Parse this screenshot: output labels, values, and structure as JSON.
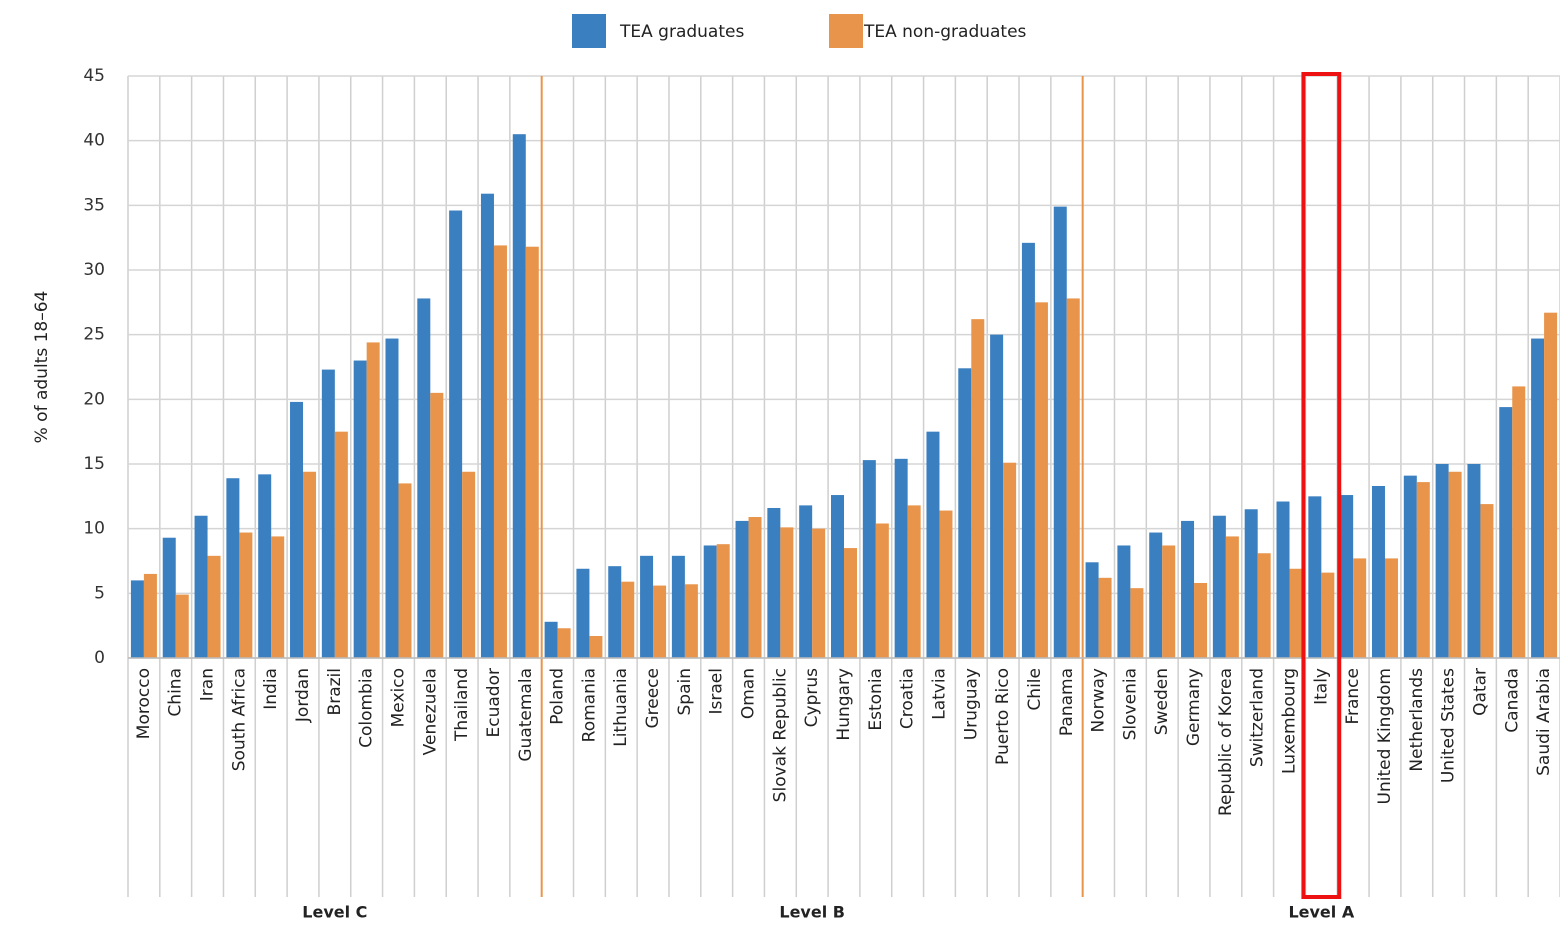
{
  "chart_data": {
    "type": "bar",
    "y_label": "% of adults 18–64",
    "categories": [
      "Morocco",
      "China",
      "Iran",
      "South Africa",
      "India",
      "Jordan",
      "Brazil",
      "Colombia",
      "Mexico",
      "Venezuela",
      "Thailand",
      "Ecuador",
      "Guatemala",
      "Poland",
      "Romania",
      "Lithuania",
      "Greece",
      "Spain",
      "Israel",
      "Oman",
      "Slovak Republic",
      "Cyprus",
      "Hungary",
      "Estonia",
      "Croatia",
      "Latvia",
      "Uruguay",
      "Puerto Rico",
      "Chile",
      "Panama",
      "Norway",
      "Slovenia",
      "Sweden",
      "Germany",
      "Republic of Korea",
      "Switzerland",
      "Luxembourg",
      "Italy",
      "France",
      "United Kingdom",
      "Netherlands",
      "United States",
      "Qatar",
      "Canada",
      "Saudi Arabia"
    ],
    "series": [
      {
        "name": "TEA graduates",
        "color": "#3a7fc0",
        "values": [
          6.0,
          9.3,
          11.0,
          13.9,
          14.2,
          19.8,
          22.3,
          23.0,
          24.7,
          27.8,
          34.6,
          35.9,
          40.5,
          2.8,
          6.9,
          7.1,
          7.9,
          7.9,
          8.7,
          10.6,
          11.6,
          11.8,
          12.6,
          15.3,
          15.4,
          17.5,
          22.4,
          25.0,
          32.1,
          34.9,
          7.4,
          8.7,
          9.7,
          10.6,
          11.0,
          11.5,
          12.1,
          12.5,
          12.6,
          13.3,
          14.1,
          15.0,
          15.0,
          19.4,
          24.7
        ]
      },
      {
        "name": "TEA non-graduates",
        "color": "#e8944a",
        "values": [
          6.5,
          4.9,
          7.9,
          9.7,
          9.4,
          14.4,
          17.5,
          24.4,
          13.5,
          20.5,
          14.4,
          31.9,
          31.8,
          2.3,
          1.7,
          5.9,
          5.6,
          5.7,
          8.8,
          10.9,
          10.1,
          10.0,
          8.5,
          10.4,
          11.8,
          11.4,
          26.2,
          15.1,
          27.5,
          27.8,
          6.2,
          5.4,
          8.7,
          5.8,
          9.4,
          8.1,
          6.9,
          6.6,
          7.7,
          7.7,
          13.6,
          14.4,
          11.9,
          21.0,
          26.7
        ]
      }
    ],
    "groups": [
      {
        "label": "Level C",
        "size": 13
      },
      {
        "label": "Level B",
        "size": 17
      },
      {
        "label": "Level A",
        "size": 15
      }
    ],
    "highlight_index": 37,
    "ylim": [
      0,
      45
    ],
    "yticks": [
      0,
      5,
      10,
      15,
      20,
      25,
      30,
      35,
      40,
      45
    ],
    "grid": true
  }
}
